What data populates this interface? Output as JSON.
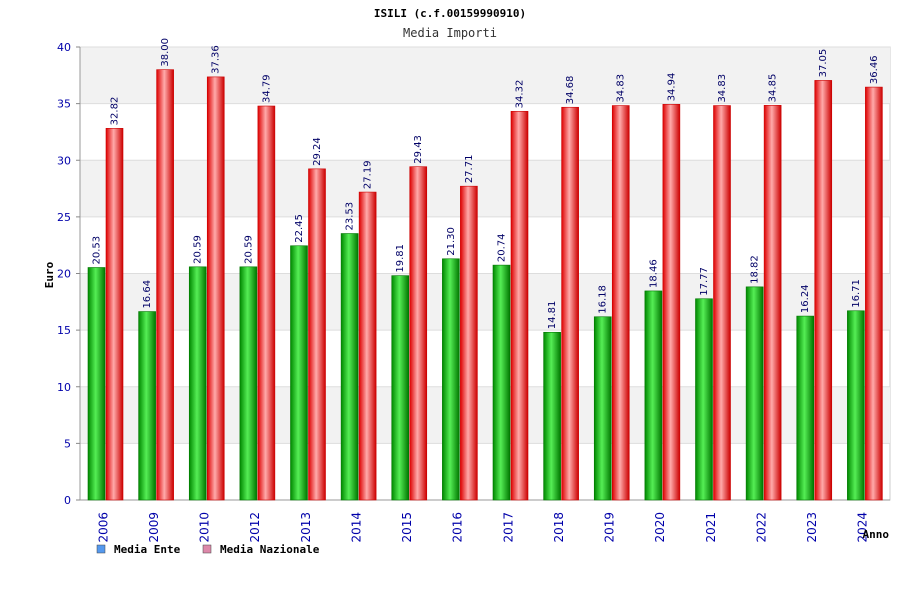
{
  "chart_data": {
    "type": "bar",
    "title": "ISILI (c.f.00159990910)",
    "subtitle": "Media Importi",
    "xlabel": "Anno",
    "ylabel": "Euro",
    "ylim": [
      0,
      40
    ],
    "yticks": [
      0,
      5,
      10,
      15,
      20,
      25,
      30,
      35,
      40
    ],
    "grid": true,
    "legend_position": "bottom-left",
    "categories": [
      "2006",
      "2009",
      "2010",
      "2012",
      "2013",
      "2014",
      "2015",
      "2016",
      "2017",
      "2018",
      "2019",
      "2020",
      "2021",
      "2022",
      "2023",
      "2024"
    ],
    "series": [
      {
        "name": "Media Ente",
        "color": "#00aa00",
        "legend_color": "#5599ee",
        "values": [
          20.53,
          16.64,
          20.59,
          20.59,
          22.45,
          23.53,
          19.81,
          21.3,
          20.74,
          14.81,
          16.18,
          18.46,
          17.77,
          18.82,
          16.24,
          16.71
        ],
        "labels": [
          "20.53",
          "16.64",
          "20.59",
          "20.59",
          "22.45",
          "23.53",
          "19.81",
          "21.30",
          "20.74",
          "14.81",
          "16.18",
          "18.46",
          "17.77",
          "18.82",
          "16.24",
          "16.71"
        ]
      },
      {
        "name": "Media Nazionale",
        "color": "#ee0000",
        "legend_color": "#dd88aa",
        "values": [
          32.82,
          38.0,
          37.36,
          34.79,
          29.24,
          27.19,
          29.43,
          27.71,
          34.32,
          34.68,
          34.83,
          34.94,
          34.83,
          34.85,
          37.05,
          36.46
        ],
        "labels": [
          "32.82",
          "38.00",
          "37.36",
          "34.79",
          "29.24",
          "27.19",
          "29.43",
          "27.71",
          "34.32",
          "34.68",
          "34.83",
          "34.94",
          "34.83",
          "34.85",
          "37.05",
          "36.46"
        ]
      }
    ]
  }
}
